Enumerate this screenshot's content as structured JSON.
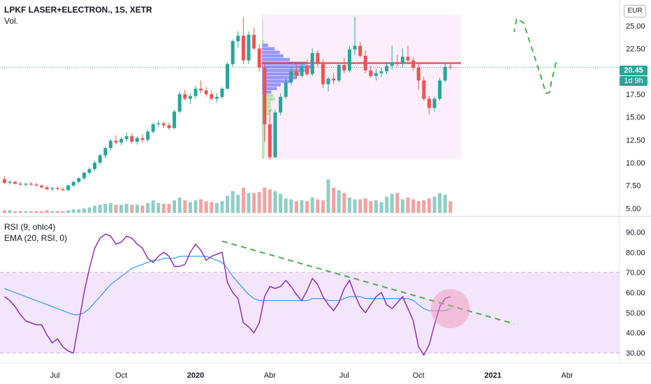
{
  "header": {
    "symbol": "LPKF LASER+ELECTRON., 1S, XETR",
    "volume_label": "Vol.",
    "currency": "EUR"
  },
  "rsi_legend": {
    "rsi": "RSI (9, ohlc4)",
    "ema": "EMA (20, RSI, 0)"
  },
  "price_scale": {
    "current_price": "20.45",
    "countdown": "1d 9h"
  },
  "colors": {
    "up": "#26a69a",
    "down": "#ef5350",
    "volume_up": "#8fcfc5",
    "volume_down": "#f2a3a1",
    "rsi_line": "#8e24aa",
    "ema_line": "#2196f3",
    "rsi_band": "#f3e5fb",
    "profile_box": "#fdeefc",
    "poc_line": "#e53935",
    "drawing": "#4caf50",
    "price_badge": "#26a69a"
  },
  "chart_data": [
    {
      "type": "candlestick",
      "title": "LPKF LASER+ELECTRON., 1S, XETR",
      "ylim": [
        4.5,
        27.2
      ],
      "y_ticks": [
        "25.00",
        "22.50",
        "20.00",
        "17.50",
        "15.00",
        "12.50",
        "10.00",
        "7.50",
        "5.00"
      ],
      "x_ticks": [
        {
          "label": "Jul",
          "bold": false
        },
        {
          "label": "Oct",
          "bold": false
        },
        {
          "label": "2020",
          "bold": true
        },
        {
          "label": "Abr",
          "bold": false
        },
        {
          "label": "Jul",
          "bold": false
        },
        {
          "label": "Oct",
          "bold": false
        },
        {
          "label": "2021",
          "bold": true
        },
        {
          "label": "Abr",
          "bold": false
        }
      ],
      "candles": [
        [
          8.2,
          8.5,
          7.7,
          7.8
        ],
        [
          7.8,
          8.1,
          7.6,
          7.9
        ],
        [
          7.9,
          8.0,
          7.6,
          7.7
        ],
        [
          7.7,
          7.9,
          7.5,
          7.6
        ],
        [
          7.6,
          7.8,
          7.4,
          7.7
        ],
        [
          7.7,
          7.9,
          7.5,
          7.6
        ],
        [
          7.6,
          7.8,
          7.4,
          7.5
        ],
        [
          7.5,
          7.6,
          7.2,
          7.3
        ],
        [
          7.3,
          7.5,
          7.0,
          7.1
        ],
        [
          7.1,
          7.4,
          6.9,
          7.2
        ],
        [
          7.2,
          7.4,
          7.0,
          7.1
        ],
        [
          7.1,
          7.3,
          6.9,
          7.0
        ],
        [
          7.0,
          7.6,
          6.9,
          7.5
        ],
        [
          7.5,
          8.0,
          7.3,
          7.9
        ],
        [
          7.9,
          8.4,
          7.7,
          8.3
        ],
        [
          8.3,
          9.0,
          8.1,
          8.9
        ],
        [
          8.9,
          9.5,
          8.7,
          9.3
        ],
        [
          9.3,
          10.2,
          9.1,
          10.0
        ],
        [
          10.0,
          11.0,
          9.8,
          10.8
        ],
        [
          10.8,
          11.8,
          10.5,
          11.6
        ],
        [
          11.6,
          12.6,
          11.3,
          12.4
        ],
        [
          12.4,
          13.0,
          12.0,
          12.2
        ],
        [
          12.2,
          12.8,
          11.9,
          12.6
        ],
        [
          12.6,
          13.3,
          12.3,
          12.9
        ],
        [
          12.9,
          13.2,
          12.1,
          12.3
        ],
        [
          12.3,
          12.9,
          12.0,
          12.7
        ],
        [
          12.7,
          13.1,
          12.2,
          12.5
        ],
        [
          12.5,
          13.6,
          12.3,
          13.4
        ],
        [
          13.4,
          14.4,
          13.2,
          14.2
        ],
        [
          14.2,
          14.6,
          13.9,
          14.3
        ],
        [
          14.3,
          14.5,
          13.8,
          14.1
        ],
        [
          14.1,
          14.4,
          13.6,
          13.8
        ],
        [
          13.8,
          15.8,
          13.7,
          15.6
        ],
        [
          15.6,
          17.8,
          15.4,
          17.5
        ],
        [
          17.5,
          18.0,
          16.8,
          17.0
        ],
        [
          17.0,
          17.6,
          16.4,
          17.3
        ],
        [
          17.3,
          18.4,
          17.0,
          18.1
        ],
        [
          18.1,
          19.0,
          17.6,
          17.9
        ],
        [
          17.9,
          18.3,
          17.2,
          17.5
        ],
        [
          17.5,
          17.9,
          16.8,
          17.0
        ],
        [
          17.0,
          17.6,
          16.6,
          17.2
        ],
        [
          17.2,
          18.3,
          17.0,
          18.1
        ],
        [
          18.1,
          21.0,
          18.0,
          20.8
        ],
        [
          20.8,
          23.5,
          20.5,
          23.3
        ],
        [
          23.3,
          24.4,
          22.6,
          23.9
        ],
        [
          23.9,
          25.9,
          20.8,
          21.2
        ],
        [
          21.2,
          24.4,
          20.8,
          24.0
        ],
        [
          24.0,
          24.8,
          22.3,
          22.5
        ],
        [
          22.5,
          23.0,
          20.0,
          20.4
        ],
        [
          20.4,
          20.9,
          12.3,
          14.2
        ],
        [
          14.2,
          15.8,
          10.3,
          10.6
        ],
        [
          10.6,
          15.8,
          10.5,
          15.5
        ],
        [
          15.5,
          17.6,
          15.2,
          17.2
        ],
        [
          17.2,
          19.2,
          17.0,
          18.8
        ],
        [
          18.8,
          20.5,
          18.5,
          20.0
        ],
        [
          20.0,
          20.8,
          19.2,
          19.5
        ],
        [
          19.5,
          21.0,
          19.3,
          20.6
        ],
        [
          20.6,
          21.3,
          19.5,
          19.7
        ],
        [
          19.7,
          22.5,
          19.5,
          22.0
        ],
        [
          22.0,
          22.3,
          20.5,
          20.8
        ],
        [
          20.8,
          21.3,
          18.2,
          18.6
        ],
        [
          18.6,
          19.4,
          17.8,
          19.2
        ],
        [
          19.2,
          19.8,
          18.6,
          19.0
        ],
        [
          19.0,
          21.0,
          18.8,
          20.7
        ],
        [
          20.7,
          21.5,
          19.8,
          20.1
        ],
        [
          20.1,
          22.8,
          19.9,
          22.4
        ],
        [
          22.4,
          26.0,
          21.8,
          22.8
        ],
        [
          22.8,
          23.2,
          21.5,
          21.7
        ],
        [
          21.7,
          22.3,
          19.8,
          20.1
        ],
        [
          20.1,
          20.6,
          19.3,
          19.5
        ],
        [
          19.5,
          20.3,
          19.0,
          19.8
        ],
        [
          19.8,
          20.4,
          19.4,
          20.0
        ],
        [
          20.0,
          21.0,
          19.7,
          20.6
        ],
        [
          20.6,
          22.8,
          20.2,
          21.0
        ],
        [
          21.0,
          21.8,
          20.5,
          20.8
        ],
        [
          20.8,
          22.5,
          20.4,
          21.6
        ],
        [
          21.6,
          22.8,
          20.8,
          21.2
        ],
        [
          21.2,
          21.5,
          20.1,
          20.4
        ],
        [
          20.4,
          21.0,
          18.0,
          19.0
        ],
        [
          19.0,
          19.4,
          16.8,
          17.0
        ],
        [
          17.0,
          17.3,
          15.3,
          16.0
        ],
        [
          16.0,
          17.2,
          15.6,
          17.0
        ],
        [
          17.0,
          19.3,
          16.8,
          19.0
        ],
        [
          19.0,
          21.0,
          18.8,
          20.5
        ],
        [
          20.5,
          20.9,
          20.2,
          20.45
        ]
      ],
      "volumes": [
        0.3,
        0.3,
        0.2,
        0.2,
        0.2,
        0.2,
        0.2,
        0.2,
        0.3,
        0.2,
        0.2,
        0.2,
        0.3,
        0.4,
        0.4,
        0.5,
        0.6,
        0.8,
        0.9,
        1.0,
        1.1,
        0.9,
        0.9,
        1.0,
        0.9,
        0.9,
        0.8,
        1.1,
        1.4,
        1.1,
        1.0,
        1.0,
        1.4,
        1.7,
        1.4,
        1.2,
        1.4,
        1.5,
        1.3,
        1.2,
        1.1,
        1.3,
        1.9,
        2.4,
        2.0,
        2.8,
        2.2,
        2.2,
        2.3,
        2.8,
        2.6,
        2.4,
        2.1,
        1.6,
        1.5,
        1.3,
        1.4,
        1.3,
        1.7,
        1.5,
        1.4,
        3.7,
        2.8,
        2.5,
        2.2,
        1.7,
        1.5,
        1.5,
        1.6,
        1.3,
        1.4,
        1.2,
        1.8,
        2.1,
        2.2,
        1.5,
        1.7,
        1.5,
        1.3,
        1.4,
        1.6,
        1.8,
        2.2,
        2.0,
        1.3
      ],
      "point_of_control": 20.9,
      "forecast_path": [
        [
          19.9,
          21.0
        ],
        [
          19.0,
          18.8
        ],
        [
          18.7,
          17.7
        ],
        [
          18.0,
          17.6
        ],
        [
          16.8,
          19.9
        ],
        [
          13.8,
          25.3
        ],
        [
          12.5,
          25.8
        ],
        [
          12.0,
          24.3
        ]
      ]
    },
    {
      "type": "line",
      "title": "RSI (9, ohlc4)",
      "ylim": [
        25,
        95
      ],
      "y_ticks": [
        "90.00",
        "80.00",
        "70.00",
        "60.00",
        "50.00",
        "40.00",
        "30.00"
      ],
      "band": [
        30,
        70
      ],
      "series": [
        {
          "name": "RSI (9, ohlc4)",
          "values": [
            58,
            56,
            53,
            49,
            46,
            45,
            44,
            44,
            39,
            35,
            37,
            33,
            31,
            30,
            45,
            60,
            72,
            82,
            87,
            89,
            88,
            84,
            85,
            88,
            87,
            84,
            82,
            77,
            75,
            78,
            80,
            78,
            73,
            73,
            74,
            80,
            84,
            81,
            76,
            78,
            79,
            80,
            65,
            60,
            57,
            45,
            43,
            40,
            45,
            58,
            63,
            62,
            63,
            66,
            63,
            59,
            56,
            61,
            67,
            64,
            58,
            54,
            51,
            55,
            62,
            66,
            59,
            53,
            50,
            54,
            58,
            60,
            54,
            52,
            55,
            58,
            52,
            46,
            33,
            29,
            34,
            44,
            53,
            57,
            58
          ]
        },
        {
          "name": "EMA (20, RSI, 0)",
          "values": [
            62,
            61,
            60,
            59,
            58,
            57,
            56,
            55,
            54,
            53,
            52,
            51,
            50,
            49,
            49,
            50,
            52,
            55,
            58,
            61,
            64,
            66,
            68,
            70,
            72,
            73,
            74,
            75,
            76,
            76,
            77,
            77,
            77,
            78,
            78,
            78,
            78,
            78,
            78,
            77,
            76,
            75,
            72,
            68,
            65,
            62,
            59,
            57,
            56,
            56,
            56,
            56,
            56,
            56,
            56,
            56,
            56,
            56,
            57,
            57,
            57,
            56,
            56,
            56,
            57,
            58,
            58,
            58,
            57,
            57,
            57,
            57,
            57,
            57,
            57,
            57,
            57,
            56,
            54,
            52,
            51,
            51,
            51,
            51,
            52
          ]
        }
      ],
      "trendline": [
        [
          85.5,
          0
        ],
        [
          44.5,
          56
        ]
      ]
    }
  ]
}
